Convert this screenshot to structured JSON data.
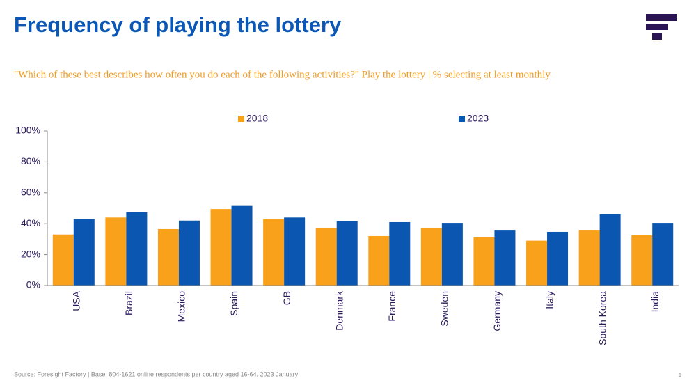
{
  "slide": {
    "title": "Frequency of playing the lottery",
    "subtitle": "\"Which of these best describes how often you do each of the following activities?\" Play the lottery | % selecting at least monthly",
    "source": "Source: Foresight Factory | Base: 804-1621 online respondents per country aged 16-64, 2023 January",
    "page_number": "1"
  },
  "chart_data": {
    "type": "bar",
    "categories": [
      "USA",
      "Brazil",
      "Mexico",
      "Spain",
      "GB",
      "Denmark",
      "France",
      "Sweden",
      "Germany",
      "Italy",
      "South Korea",
      "India"
    ],
    "series": [
      {
        "name": "2018",
        "color": "#F9A11B",
        "values": [
          33,
          44,
          36.5,
          49.5,
          43,
          37,
          32,
          37,
          31.5,
          29,
          36,
          32.5
        ]
      },
      {
        "name": "2023",
        "color": "#0A56B0",
        "values": [
          43,
          47.5,
          42,
          51.5,
          44,
          41.5,
          41,
          40.5,
          36,
          34.7,
          46,
          40.5
        ]
      }
    ],
    "ylim": [
      0,
      100
    ],
    "yticks": [
      {
        "value": 0,
        "label": "0%"
      },
      {
        "value": 20,
        "label": "20%"
      },
      {
        "value": 40,
        "label": "40%"
      },
      {
        "value": 60,
        "label": "60%"
      },
      {
        "value": 80,
        "label": "80%"
      },
      {
        "value": 100,
        "label": "100%"
      }
    ],
    "grid": false,
    "legend": "top"
  }
}
